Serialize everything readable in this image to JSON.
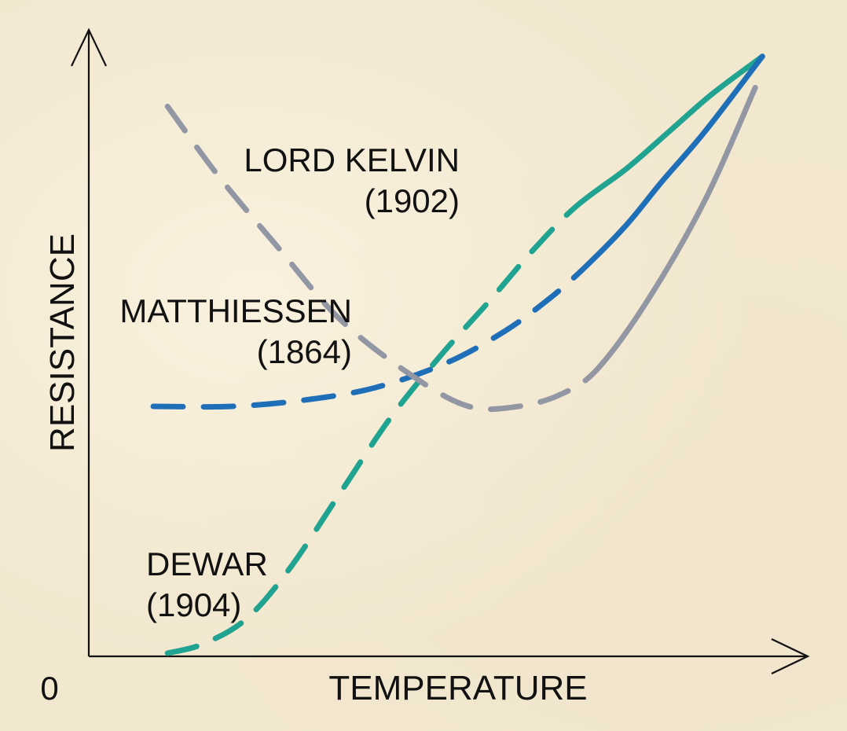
{
  "chart_data": {
    "type": "line",
    "xlabel": "TEMPERATURE",
    "ylabel": "RESISTANCE",
    "origin_label": "0",
    "xlim": [
      0,
      100
    ],
    "ylim": [
      0,
      100
    ],
    "grid": false,
    "legend": "none",
    "series": [
      {
        "name": "LORD KELVIN (1902)",
        "label_line1": "LORD KELVIN",
        "label_line2": "(1902)",
        "color": "#9297a3",
        "dash": "dashed",
        "x": [
          11,
          18,
          26,
          35,
          45,
          53,
          60,
          66,
          71,
          78,
          86,
          93
        ],
        "y": [
          88,
          77,
          66,
          54,
          45,
          40,
          40,
          42,
          46,
          57,
          73,
          91
        ]
      },
      {
        "name": "MATTHIESSEN (1864)",
        "label_line1": "MATTHIESSEN",
        "label_line2": "(1864)",
        "color": "#1f6fb8",
        "dash": "dashed",
        "x": [
          9,
          20,
          30,
          40,
          50,
          58,
          64,
          69,
          75,
          80,
          86,
          94
        ],
        "y": [
          40,
          40,
          41,
          43,
          47,
          52,
          57,
          62,
          69,
          76,
          84,
          96
        ]
      },
      {
        "name": "DEWAR (1904)",
        "label_line1": "DEWAR",
        "label_line2": "(1904)",
        "color": "#20a391",
        "dash": "dashed",
        "x": [
          11,
          16,
          22,
          28,
          35,
          42,
          49,
          56,
          62,
          68,
          75,
          81,
          87,
          94
        ],
        "y": [
          0.5,
          2,
          6,
          14,
          26,
          38,
          48,
          57,
          65,
          72,
          78,
          84,
          90,
          96
        ]
      }
    ]
  }
}
